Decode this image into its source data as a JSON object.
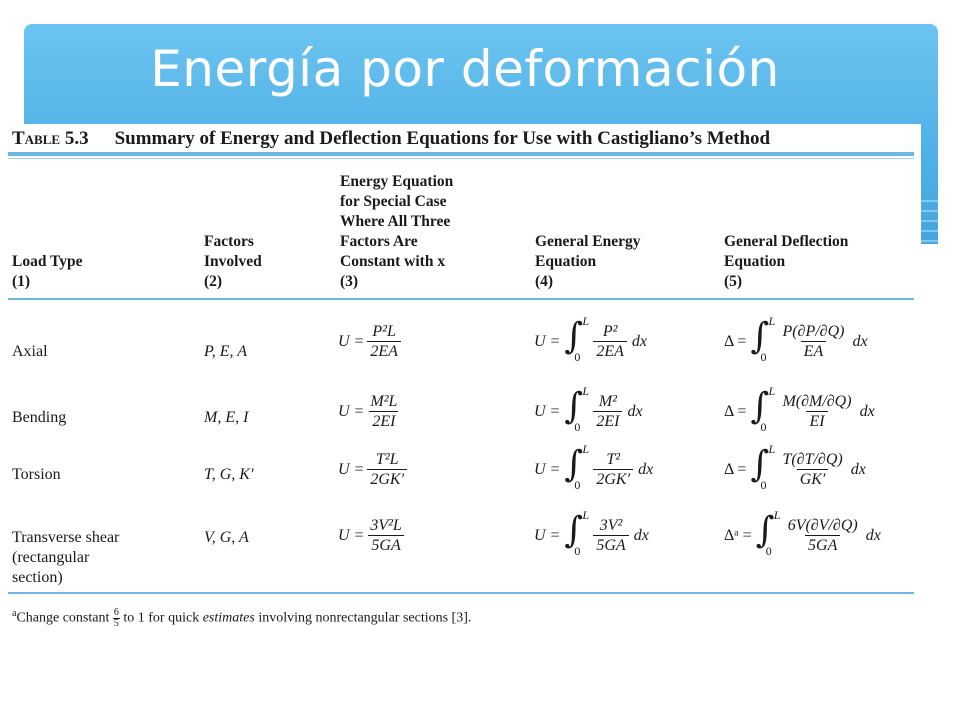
{
  "slide": {
    "title": "Energía por deformación"
  },
  "table": {
    "number": "Table 5.3",
    "title": "Summary of Energy and Deflection Equations for Use with Castigliano’s Method",
    "headers": [
      "Load Type\n(1)",
      "Factors\nInvolved\n(2)",
      "Energy Equation\nfor Special Case\nWhere All Three\nFactors Are\nConstant with x\n(3)",
      "General Energy\nEquation\n(4)",
      "General Deflection\nEquation\n(5)"
    ],
    "rows": [
      {
        "load": "Axial",
        "factors": "P, E, A",
        "special": {
          "lhs": "U =",
          "num": "P²L",
          "den": "2EA"
        },
        "energy": {
          "lhs": "U =",
          "upper": "L",
          "lower": "0",
          "num": "P²",
          "den": "2EA",
          "dx": "dx"
        },
        "deflection": {
          "lhs": "Δ =",
          "upper": "L",
          "lower": "0",
          "num": "P(∂P/∂Q)",
          "den": "EA",
          "dx": "dx"
        }
      },
      {
        "load": "Bending",
        "factors": "M, E, I",
        "special": {
          "lhs": "U =",
          "num": "M²L",
          "den": "2EI"
        },
        "energy": {
          "lhs": "U =",
          "upper": "L",
          "lower": "0",
          "num": "M²",
          "den": "2EI",
          "dx": "dx"
        },
        "deflection": {
          "lhs": "Δ =",
          "upper": "L",
          "lower": "0",
          "num": "M(∂M/∂Q)",
          "den": "EI",
          "dx": "dx"
        }
      },
      {
        "load": "Torsion",
        "factors": "T, G, K′",
        "special": {
          "lhs": "U =",
          "num": "T²L",
          "den": "2GK′"
        },
        "energy": {
          "lhs": "U =",
          "upper": "L",
          "lower": "0",
          "num": "T²",
          "den": "2GK′",
          "dx": "dx"
        },
        "deflection": {
          "lhs": "Δ =",
          "upper": "L",
          "lower": "0",
          "num": "T(∂T/∂Q)",
          "den": "GK′",
          "dx": "dx"
        }
      },
      {
        "load": "Transverse shear\n(rectangular\nsection)",
        "factors": "V, G, A",
        "special": {
          "lhs": "U =",
          "num": "3V²L",
          "den": "5GA"
        },
        "energy": {
          "lhs": "U =",
          "upper": "L",
          "lower": "0",
          "num": "3V²",
          "den": "5GA",
          "dx": "dx"
        },
        "deflection": {
          "lhs": "Δᵃ =",
          "upper": "L",
          "lower": "0",
          "num": "6V(∂V/∂Q)",
          "den": "5GA",
          "dx": "dx"
        }
      }
    ],
    "footnote": {
      "mark": "a",
      "before": "Change constant ",
      "frac_num": "6",
      "frac_den": "5",
      "middle": " to 1 for quick ",
      "emph": "estimates",
      "after": " involving nonrectangular sections [3]."
    }
  },
  "colors": {
    "banner": "#4fb0e6",
    "rules": "#6cb8e0",
    "title_text": "#ffffff"
  }
}
